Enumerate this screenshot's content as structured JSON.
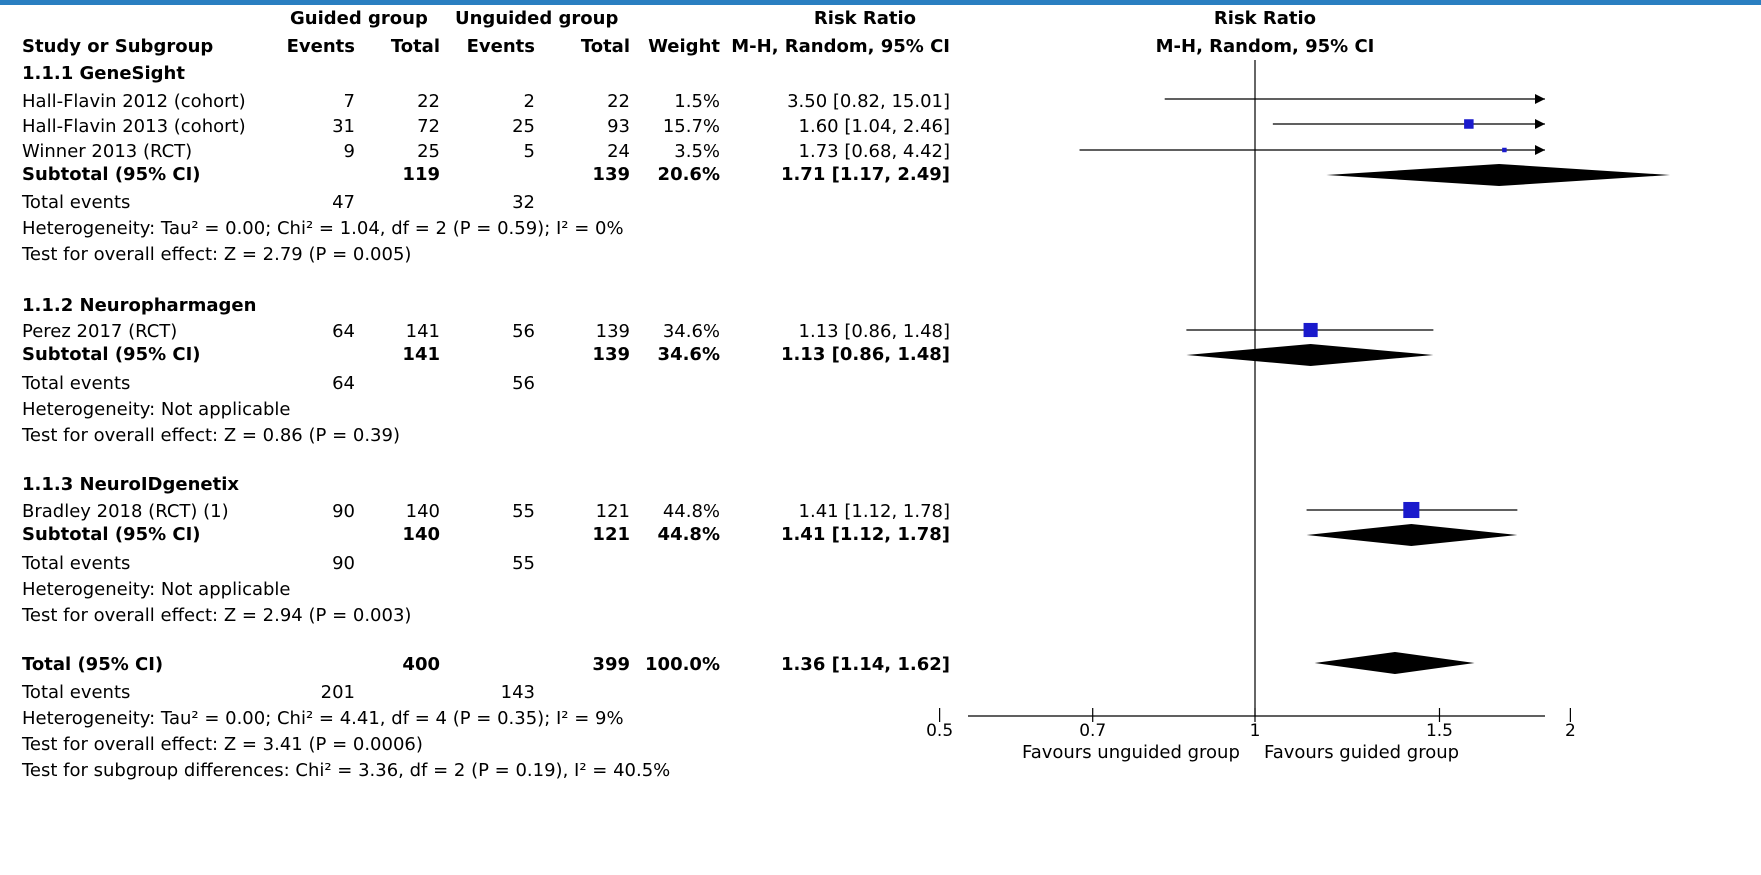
{
  "headers": {
    "study": "Study or Subgroup",
    "guided_group": "Guided group",
    "unguided_group": "Unguided group",
    "events": "Events",
    "total": "Total",
    "weight": "Weight",
    "risk_ratio": "Risk Ratio",
    "method": "M-H, Random, 95% CI",
    "plot_risk_ratio": "Risk Ratio",
    "plot_method": "M-H, Random, 95% CI"
  },
  "subgroups": [
    {
      "title": "1.1.1 GeneSight",
      "studies": [
        {
          "name": "Hall-Flavin 2012 (cohort)",
          "ge": "7",
          "gt": "22",
          "ue": "2",
          "ut": "22",
          "weight": "1.5%",
          "rr_text": "3.50 [0.82, 15.01]"
        },
        {
          "name": "Hall-Flavin 2013 (cohort)",
          "ge": "31",
          "gt": "72",
          "ue": "25",
          "ut": "93",
          "weight": "15.7%",
          "rr_text": "1.60 [1.04, 2.46]"
        },
        {
          "name": "Winner 2013 (RCT)",
          "ge": "9",
          "gt": "25",
          "ue": "5",
          "ut": "24",
          "weight": "3.5%",
          "rr_text": "1.73 [0.68, 4.42]"
        }
      ],
      "subtotal": {
        "label": "Subtotal (95% CI)",
        "gt": "119",
        "ut": "139",
        "weight": "20.6%",
        "rr_text": "1.71 [1.17, 2.49]"
      },
      "total_events": {
        "label": "Total events",
        "g": "47",
        "u": "32"
      },
      "heterogeneity": "Heterogeneity: Tau² = 0.00; Chi² = 1.04, df = 2 (P = 0.59); I² = 0%",
      "overall": "Test for overall effect: Z = 2.79 (P = 0.005)"
    },
    {
      "title": "1.1.2 Neuropharmagen",
      "studies": [
        {
          "name": "Perez 2017 (RCT)",
          "ge": "64",
          "gt": "141",
          "ue": "56",
          "ut": "139",
          "weight": "34.6%",
          "rr_text": "1.13 [0.86, 1.48]"
        }
      ],
      "subtotal": {
        "label": "Subtotal (95% CI)",
        "gt": "141",
        "ut": "139",
        "weight": "34.6%",
        "rr_text": "1.13 [0.86, 1.48]"
      },
      "total_events": {
        "label": "Total events",
        "g": "64",
        "u": "56"
      },
      "heterogeneity": "Heterogeneity: Not applicable",
      "overall": "Test for overall effect: Z = 0.86 (P = 0.39)"
    },
    {
      "title": "1.1.3 NeuroIDgenetix",
      "studies": [
        {
          "name": "Bradley 2018 (RCT) (1)",
          "ge": "90",
          "gt": "140",
          "ue": "55",
          "ut": "121",
          "weight": "44.8%",
          "rr_text": "1.41 [1.12, 1.78]"
        }
      ],
      "subtotal": {
        "label": "Subtotal (95% CI)",
        "gt": "140",
        "ut": "121",
        "weight": "44.8%",
        "rr_text": "1.41 [1.12, 1.78]"
      },
      "total_events": {
        "label": "Total events",
        "g": "90",
        "u": "55"
      },
      "heterogeneity": "Heterogeneity: Not applicable",
      "overall": "Test for overall effect: Z = 2.94 (P = 0.003)"
    }
  ],
  "total": {
    "label": "Total (95% CI)",
    "gt": "400",
    "ut": "399",
    "weight": "100.0%",
    "rr_text": "1.36 [1.14, 1.62]",
    "events_label": "Total events",
    "ge": "201",
    "ue": "143",
    "heterogeneity": "Heterogeneity: Tau² = 0.00; Chi² = 4.41, df = 4 (P = 0.35); I² = 9%",
    "overall": "Test for overall effect: Z = 3.41 (P = 0.0006)",
    "subgroup_diff": "Test for subgroup differences: Chi² = 3.36, df = 2 (P = 0.19), I² = 40.5%"
  },
  "axis": {
    "favours_left": "Favours unguided group",
    "favours_right": "Favours guided group"
  },
  "chart_data": {
    "type": "forest",
    "x_scale": "log",
    "xlim": [
      0.4,
      2.5
    ],
    "xticks": [
      0.5,
      0.7,
      1,
      1.5,
      2
    ],
    "xtick_labels": [
      "0.5",
      "0.7",
      "1",
      "1.5",
      "2"
    ],
    "reference_line": 1,
    "marker_color": "#1a1acc",
    "studies": [
      {
        "name": "Hall-Flavin 2012 (cohort)",
        "rr": 3.5,
        "lo": 0.82,
        "hi": 15.01,
        "weight": 1.5
      },
      {
        "name": "Hall-Flavin 2013 (cohort)",
        "rr": 1.6,
        "lo": 1.04,
        "hi": 2.46,
        "weight": 15.7
      },
      {
        "name": "Winner 2013 (RCT)",
        "rr": 1.73,
        "lo": 0.68,
        "hi": 4.42,
        "weight": 3.5
      },
      {
        "name": "Perez 2017 (RCT)",
        "rr": 1.13,
        "lo": 0.86,
        "hi": 1.48,
        "weight": 34.6
      },
      {
        "name": "Bradley 2018 (RCT) (1)",
        "rr": 1.41,
        "lo": 1.12,
        "hi": 1.78,
        "weight": 44.8
      }
    ],
    "diamonds": [
      {
        "name": "Subtotal 1.1.1 GeneSight",
        "rr": 1.71,
        "lo": 1.17,
        "hi": 2.49
      },
      {
        "name": "Subtotal 1.1.2 Neuropharmagen",
        "rr": 1.13,
        "lo": 0.86,
        "hi": 1.48
      },
      {
        "name": "Subtotal 1.1.3 NeuroIDgenetix",
        "rr": 1.41,
        "lo": 1.12,
        "hi": 1.78
      },
      {
        "name": "Total (95% CI)",
        "rr": 1.36,
        "lo": 1.14,
        "hi": 1.62
      }
    ]
  }
}
